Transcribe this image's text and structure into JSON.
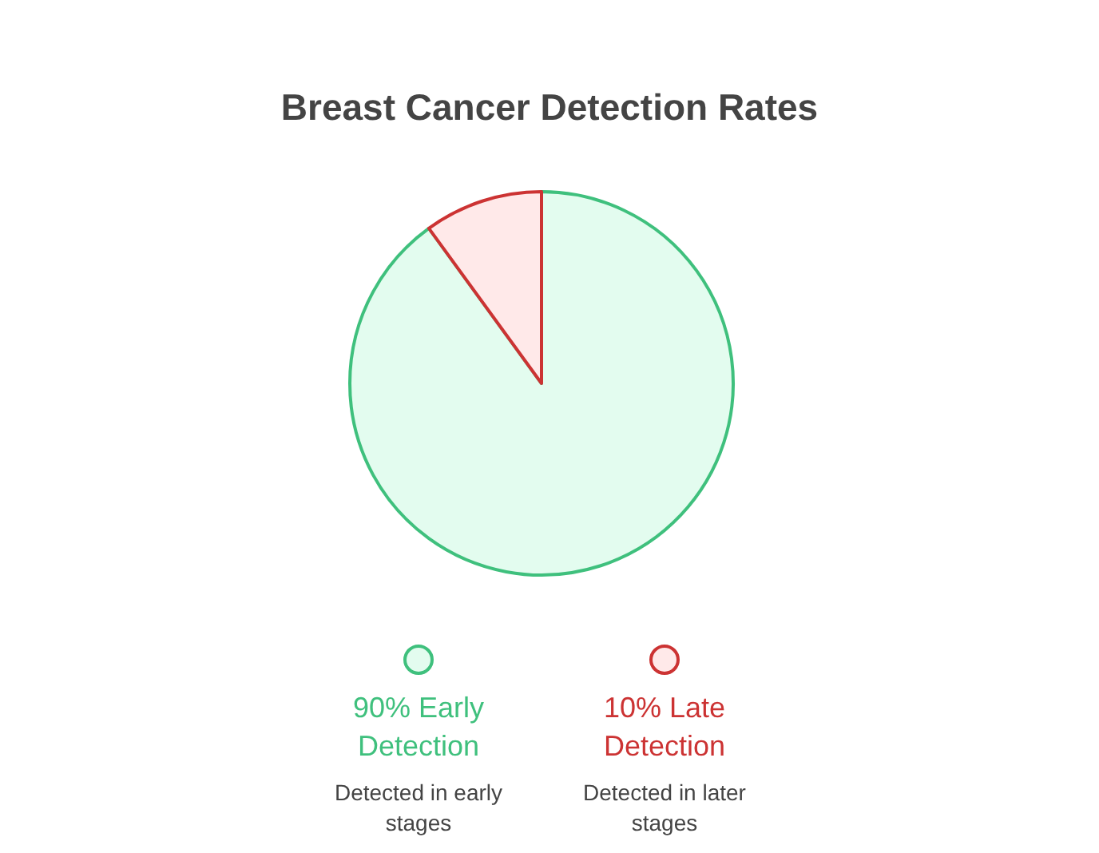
{
  "chart_data": {
    "type": "pie",
    "title": "Breast Cancer Detection Rates",
    "categories": [
      "Early Detection",
      "Late Detection"
    ],
    "values": [
      90,
      10
    ],
    "value_labels": [
      "90%",
      "10%"
    ],
    "colors": [
      "#e3fcef",
      "#ffe9e9"
    ],
    "legend": "bottom",
    "annotations": [
      "Detected in early stages",
      "Detected in later stages"
    ]
  }
}
